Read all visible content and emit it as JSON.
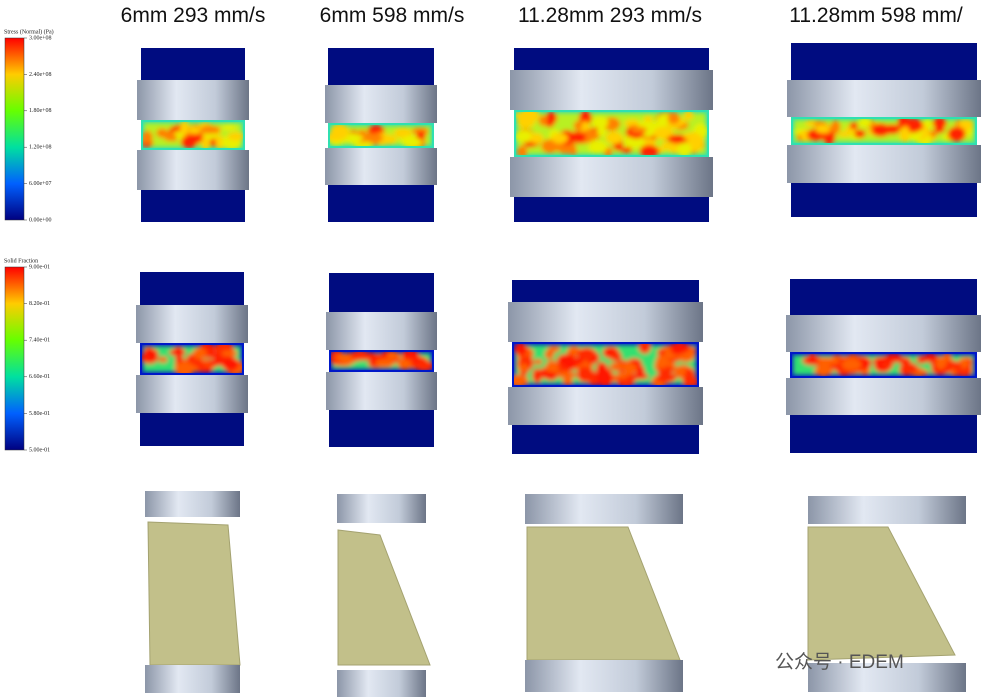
{
  "column_titles": [
    "6mm 293 mm/s",
    "6mm 598 mm/s",
    "11.28mm 293 mm/s",
    "11.28mm 598 mm/"
  ],
  "legends": [
    {
      "title": "Stress (Normal) (Pa)",
      "ticks": [
        "3.00e+08",
        "2.40e+08",
        "1.80e+08",
        "1.20e+08",
        "6.00e+07",
        "0.00e+00"
      ]
    },
    {
      "title": "Solid Fraction",
      "ticks": [
        "9.00e-01",
        "8.20e-01",
        "7.40e-01",
        "6.60e-01",
        "5.80e-01",
        "5.00e-01"
      ]
    }
  ],
  "watermark": "公众号 · EDEM"
}
